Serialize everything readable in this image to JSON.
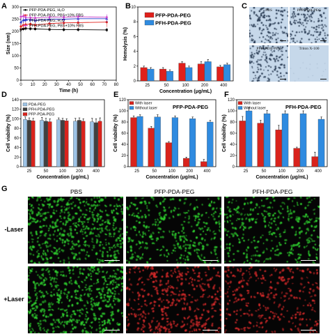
{
  "panels": {
    "A": "A",
    "B": "B",
    "C": "C",
    "D": "D",
    "E": "E",
    "F": "F",
    "G": "G"
  },
  "chart_data": [
    {
      "id": "A",
      "type": "line",
      "xlabel": "Time (h)",
      "ylabel": "Size (nm)",
      "xlim": [
        0,
        80
      ],
      "ylim": [
        0,
        300
      ],
      "xticks": [
        0,
        10,
        20,
        30,
        40,
        50,
        60,
        70,
        80
      ],
      "yticks": [
        0,
        50,
        100,
        150,
        200,
        250,
        300
      ],
      "series": [
        {
          "name": "PFP-PDA-PEG, H₂O",
          "color": "#000000",
          "marker": "square",
          "x": [
            0,
            2,
            4,
            8,
            12,
            24,
            36,
            48,
            72
          ],
          "y": [
            208,
            210,
            212,
            211,
            210,
            208,
            207,
            207,
            206
          ],
          "err": [
            8,
            8,
            8,
            8,
            8,
            8,
            8,
            8,
            8
          ]
        },
        {
          "name": "PFP-PDA-PEG, PBS+10% FBS",
          "color": "#e0201b",
          "marker": "circle",
          "x": [
            0,
            2,
            4,
            8,
            12,
            24,
            36,
            48,
            72
          ],
          "y": [
            220,
            225,
            228,
            230,
            226,
            232,
            235,
            236,
            238
          ],
          "err": [
            15,
            15,
            15,
            15,
            15,
            20,
            20,
            20,
            20
          ]
        },
        {
          "name": "PFH-PDA-PEG, H₂O",
          "color": "#2233cc",
          "marker": "triangle",
          "x": [
            0,
            2,
            4,
            8,
            12,
            24,
            36,
            48,
            72
          ],
          "y": [
            238,
            246,
            250,
            248,
            245,
            250,
            250,
            252,
            252
          ],
          "err": [
            12,
            12,
            12,
            12,
            12,
            15,
            15,
            15,
            15
          ]
        },
        {
          "name": "PFH-PDA-PEG, PBS+10% FBS",
          "color": "#cc44cc",
          "marker": "diamond",
          "x": [
            0,
            2,
            4,
            8,
            12,
            24,
            36,
            48,
            72
          ],
          "y": [
            260,
            262,
            258,
            256,
            255,
            258,
            258,
            260,
            258
          ],
          "err": [
            12,
            12,
            12,
            12,
            12,
            12,
            12,
            12,
            12
          ]
        }
      ]
    },
    {
      "id": "B",
      "type": "bar",
      "xlabel": "Concentration (μg/mL)",
      "ylabel": "Hemolysis (%)",
      "ylim": [
        0,
        10
      ],
      "yticks": [
        0,
        2,
        4,
        6,
        8,
        10
      ],
      "categories": [
        "25",
        "50",
        "100",
        "200",
        "400"
      ],
      "series": [
        {
          "name": "PFP-PDA-PEG",
          "color": "#e0201b",
          "values": [
            1.8,
            1.6,
            2.4,
            2.3,
            1.9
          ],
          "err": [
            0.2,
            0.2,
            0.2,
            0.3,
            0.2
          ]
        },
        {
          "name": "PFH-PDA-PEG",
          "color": "#2f8be0",
          "values": [
            1.6,
            1.3,
            1.8,
            2.6,
            2.2
          ],
          "err": [
            0.2,
            0.2,
            0.2,
            0.3,
            0.2
          ]
        }
      ]
    },
    {
      "id": "D",
      "type": "bar",
      "xlabel": "Concentration (μg/mL)",
      "ylabel": "Cell viability (%)",
      "ylim": [
        0,
        140
      ],
      "yticks": [
        0,
        20,
        40,
        60,
        80,
        100,
        120,
        140
      ],
      "categories": [
        "25",
        "50",
        "100",
        "200",
        "400"
      ],
      "series": [
        {
          "name": "PDA-PEG",
          "color": "#9dc3e6",
          "values": [
            99,
            97,
            98,
            95,
            94
          ],
          "err": [
            5,
            6,
            4,
            6,
            7
          ]
        },
        {
          "name": "PFH-PDA-PEG",
          "color": "#404040",
          "values": [
            97,
            95,
            97,
            97,
            92
          ],
          "err": [
            5,
            6,
            4,
            5,
            8
          ]
        },
        {
          "name": "PFP-PDA-PEG",
          "color": "#d9231c",
          "values": [
            96,
            94,
            96,
            95,
            95
          ],
          "err": [
            5,
            6,
            4,
            5,
            7
          ]
        }
      ]
    },
    {
      "id": "E",
      "type": "bar",
      "title": "PFP-PDA-PEG",
      "xlabel": "Concentration (μg/mL)",
      "ylabel": "Cell viability (%)",
      "ylim": [
        0,
        120
      ],
      "yticks": [
        0,
        20,
        40,
        60,
        80,
        100,
        120
      ],
      "categories": [
        "25",
        "50",
        "100",
        "200",
        "400"
      ],
      "series": [
        {
          "name": "With laser",
          "color": "#d9231c",
          "values": [
            88,
            69,
            43,
            15,
            9
          ],
          "err": [
            3,
            3,
            2,
            2,
            4
          ]
        },
        {
          "name": "Without laser",
          "color": "#2f8be0",
          "values": [
            90,
            89,
            88,
            86,
            80
          ],
          "err": [
            3,
            4,
            3,
            3,
            3
          ]
        }
      ]
    },
    {
      "id": "F",
      "type": "bar",
      "title": "PFH-PDA-PEG",
      "xlabel": "Concentration (μg/mL)",
      "ylabel": "Cell viability (%)",
      "ylim": [
        0,
        120
      ],
      "yticks": [
        0,
        20,
        40,
        60,
        80,
        100,
        120
      ],
      "categories": [
        "25",
        "50",
        "100",
        "200",
        "400"
      ],
      "series": [
        {
          "name": "With laser",
          "color": "#d9231c",
          "values": [
            82,
            78,
            66,
            33,
            18
          ],
          "err": [
            8,
            5,
            8,
            2,
            8
          ]
        },
        {
          "name": "Without laser",
          "color": "#2f8be0",
          "values": [
            100,
            95,
            95,
            95,
            85
          ],
          "err": [
            6,
            6,
            5,
            5,
            4
          ]
        }
      ]
    }
  ],
  "panel_c": {
    "tiles": [
      {
        "label": "PBS",
        "state": "intact"
      },
      {
        "label": "PFP-PDA-PEG",
        "state": "intact"
      },
      {
        "label": "PFH-PDA-PEG",
        "state": "intact"
      },
      {
        "label": "Triton X-100",
        "state": "lysed"
      }
    ]
  },
  "panel_g": {
    "columns": [
      "PBS",
      "PFP-PDA-PEG",
      "PFH-PDA-PEG"
    ],
    "rows": [
      "-Laser",
      "+Laser"
    ],
    "cells": [
      [
        "live",
        "live",
        "live"
      ],
      [
        "live",
        "dead",
        "dead"
      ]
    ],
    "live_color": "#2fd02f",
    "dead_color": "#d22a2a"
  }
}
